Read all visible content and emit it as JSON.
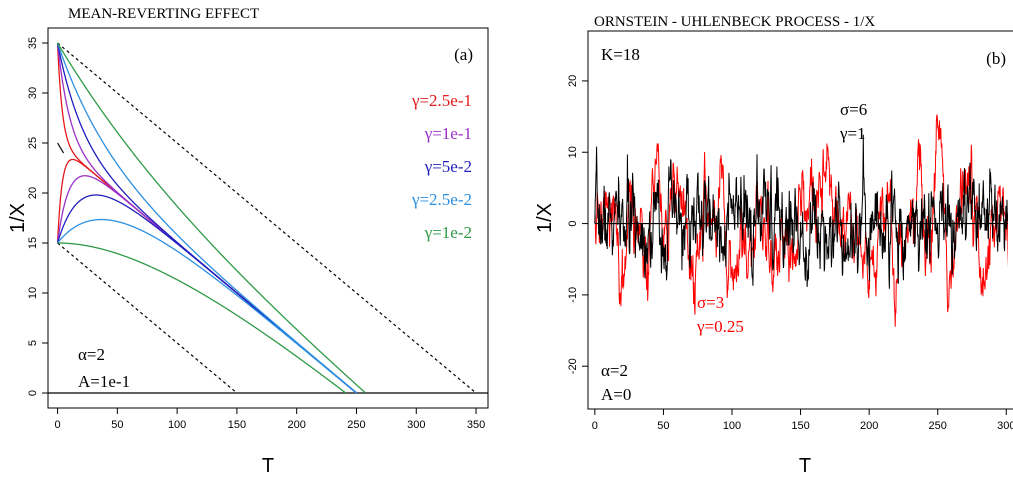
{
  "chart_data": [
    {
      "type": "line",
      "title": "MEAN-REVERTING EFFECT",
      "panel_label": "(a)",
      "xlabel": "T",
      "ylabel": "1/X",
      "xlim": [
        -8,
        360
      ],
      "ylim": [
        -1.5,
        36.5
      ],
      "xticks": [
        0,
        50,
        100,
        150,
        200,
        250,
        300,
        350
      ],
      "yticks": [
        0,
        5,
        10,
        15,
        20,
        25,
        30,
        35
      ],
      "grid": false,
      "legend_position": "right",
      "params": {
        "alpha": "α=2",
        "A": "A=1e-1"
      },
      "series": [
        {
          "name": "γ=2.5e-1",
          "color": "#e31a1c",
          "y0": [
            35,
            15
          ],
          "rate": 0.25
        },
        {
          "name": "γ=1e-1",
          "color": "#9b30c8",
          "y0": [
            35,
            15
          ],
          "rate": 0.1
        },
        {
          "name": "γ=5e-2",
          "color": "#1f1fbf",
          "y0": [
            35,
            15
          ],
          "rate": 0.05
        },
        {
          "name": "γ=2.5e-2",
          "color": "#2b8fe0",
          "y0": [
            35,
            15
          ],
          "rate": 0.025
        },
        {
          "name": "γ=1e-2",
          "color": "#2e9a46",
          "y0": [
            35,
            15
          ],
          "rate": 0.01
        }
      ],
      "reference_lines": [
        {
          "style": "solid",
          "color": "#000000",
          "x": [
            0,
            5
          ],
          "y": [
            25,
            24
          ]
        },
        {
          "style": "dashed",
          "color": "#000000",
          "x": [
            0,
            350
          ],
          "y": [
            35,
            0
          ]
        },
        {
          "style": "dashed",
          "color": "#000000",
          "x": [
            0,
            150
          ],
          "y": [
            15,
            0
          ]
        },
        {
          "style": "solid",
          "color": "#000000",
          "x": [
            -8,
            360
          ],
          "y": [
            0,
            0
          ]
        }
      ]
    },
    {
      "type": "line",
      "title": "ORNSTEIN - UHLENBECK PROCESS - 1/X",
      "panel_label": "(b)",
      "xlabel": "T",
      "ylabel": "1/X",
      "xlim": [
        -5,
        310
      ],
      "ylim": [
        -26,
        27
      ],
      "xticks": [
        0,
        50,
        100,
        150,
        200,
        250,
        300
      ],
      "yticks": [
        -20,
        -10,
        0,
        10,
        20
      ],
      "grid": false,
      "params": {
        "K": "K=18",
        "alpha": "α=2",
        "A": "A=0"
      },
      "series": [
        {
          "label_lines": [
            "σ=6",
            "γ=1"
          ],
          "color": "#000000",
          "sigma": 6,
          "gamma": 1,
          "seed": 7
        },
        {
          "label_lines": [
            "σ=3",
            "γ=0.25"
          ],
          "color": "#ff0000",
          "sigma": 3,
          "gamma": 0.25,
          "seed": 21
        }
      ],
      "x_range": [
        0,
        310
      ],
      "reference_lines": [
        {
          "style": "solid",
          "color": "#000000",
          "x": [
            0,
            310
          ],
          "y": [
            0,
            0
          ]
        }
      ]
    }
  ]
}
